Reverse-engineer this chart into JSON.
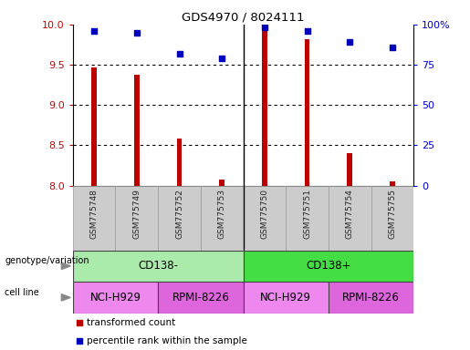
{
  "title": "GDS4970 / 8024111",
  "samples": [
    "GSM775748",
    "GSM775749",
    "GSM775752",
    "GSM775753",
    "GSM775750",
    "GSM775751",
    "GSM775754",
    "GSM775755"
  ],
  "transformed_count": [
    9.47,
    9.38,
    8.58,
    8.07,
    9.93,
    9.82,
    8.4,
    8.05
  ],
  "percentile_rank": [
    96,
    95,
    82,
    79,
    98,
    96,
    89,
    86
  ],
  "ylim_left": [
    8.0,
    10.0
  ],
  "ylim_right": [
    0,
    100
  ],
  "yticks_left": [
    8.0,
    8.5,
    9.0,
    9.5,
    10.0
  ],
  "yticks_right": [
    0,
    25,
    50,
    75,
    100
  ],
  "yticklabels_right": [
    "0",
    "25",
    "50",
    "75",
    "100%"
  ],
  "bar_color": "#bb0000",
  "dot_color": "#0000bb",
  "bar_width": 0.12,
  "genotype_groups": [
    {
      "label": "CD138-",
      "start": 0,
      "end": 4,
      "color": "#aaeaaa"
    },
    {
      "label": "CD138+",
      "start": 4,
      "end": 8,
      "color": "#44dd44"
    }
  ],
  "cell_line_groups": [
    {
      "label": "NCI-H929",
      "start": 0,
      "end": 2,
      "color": "#ee88ee"
    },
    {
      "label": "RPMI-8226",
      "start": 2,
      "end": 4,
      "color": "#dd66dd"
    },
    {
      "label": "NCI-H929",
      "start": 4,
      "end": 6,
      "color": "#ee88ee"
    },
    {
      "label": "RPMI-8226",
      "start": 6,
      "end": 8,
      "color": "#dd66dd"
    }
  ],
  "legend_items": [
    {
      "label": "transformed count",
      "color": "#bb0000",
      "marker": "s"
    },
    {
      "label": "percentile rank within the sample",
      "color": "#0000bb",
      "marker": "s"
    }
  ],
  "tick_label_color": "#222222",
  "left_axis_color": "#cc0000",
  "right_axis_color": "#0000cc",
  "background_color": "#ffffff",
  "hgrid_dotted_at": [
    8.5,
    9.0,
    9.5
  ],
  "xlabel_bg": "#cccccc",
  "xlabel_border": "#999999"
}
